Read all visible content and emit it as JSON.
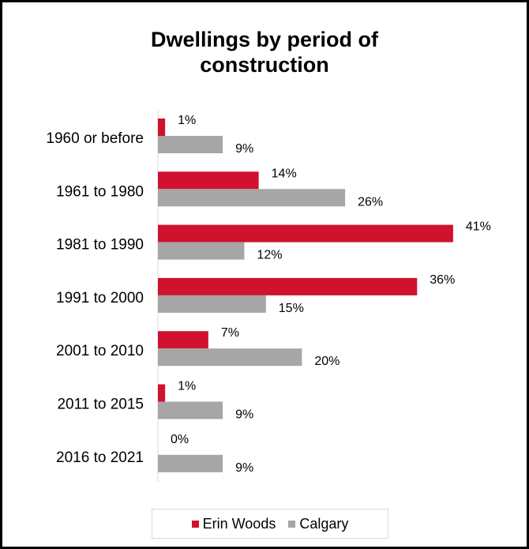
{
  "chart_data": {
    "type": "bar",
    "orientation": "horizontal",
    "title": "Dwellings by period of construction",
    "title_lines": [
      "Dwellings by period of",
      "construction"
    ],
    "categories": [
      "1960 or before",
      "1961 to 1980",
      "1981 to 1990",
      "1991 to 2000",
      "2001 to 2010",
      "2011 to 2015",
      "2016 to 2021"
    ],
    "series": [
      {
        "name": "Erin Woods",
        "color": "#d0122f",
        "values": [
          1,
          14,
          41,
          36,
          7,
          1,
          0
        ],
        "labels": [
          "1%",
          "14%",
          "41%",
          "36%",
          "7%",
          "1%",
          "0%"
        ]
      },
      {
        "name": "Calgary",
        "color": "#a6a6a6",
        "values": [
          9,
          26,
          12,
          15,
          20,
          9,
          9
        ],
        "labels": [
          "9%",
          "26%",
          "12%",
          "15%",
          "20%",
          "9%",
          "9%"
        ]
      }
    ],
    "xlim": [
      0,
      42
    ],
    "grid": false,
    "legend": "bottom"
  }
}
